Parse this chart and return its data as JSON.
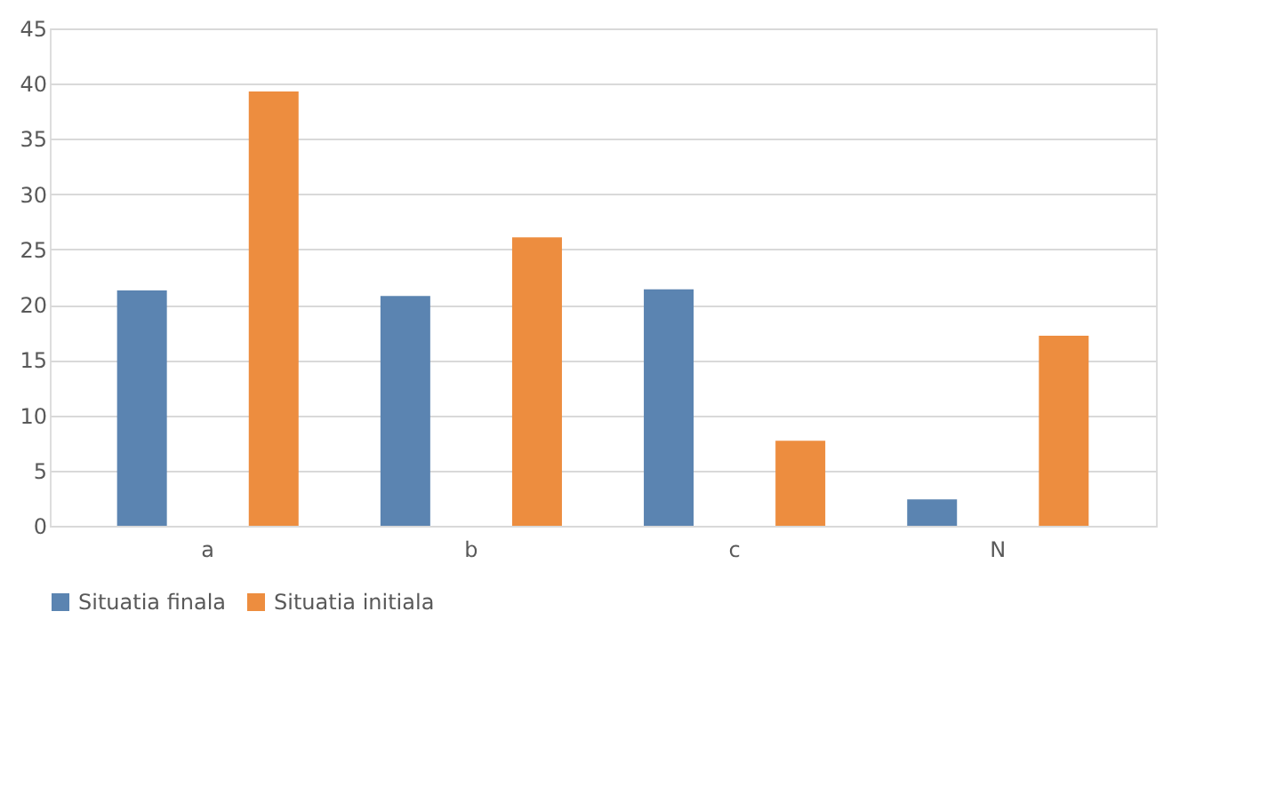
{
  "chart_data": {
    "type": "bar",
    "categories": [
      "a",
      "b",
      "c",
      "N"
    ],
    "series": [
      {
        "name": "Situatia finala",
        "color": "#5b84b1",
        "values": [
          21.3,
          20.8,
          21.4,
          2.4
        ]
      },
      {
        "name": "Situatia initiala",
        "color": "#ed8d3f",
        "values": [
          39.3,
          26.1,
          7.7,
          17.2
        ]
      }
    ],
    "ylim": [
      0,
      45
    ],
    "yticks": [
      0,
      5,
      10,
      15,
      20,
      25,
      30,
      35,
      40,
      45
    ],
    "grid": "y",
    "legend": "bottom"
  }
}
